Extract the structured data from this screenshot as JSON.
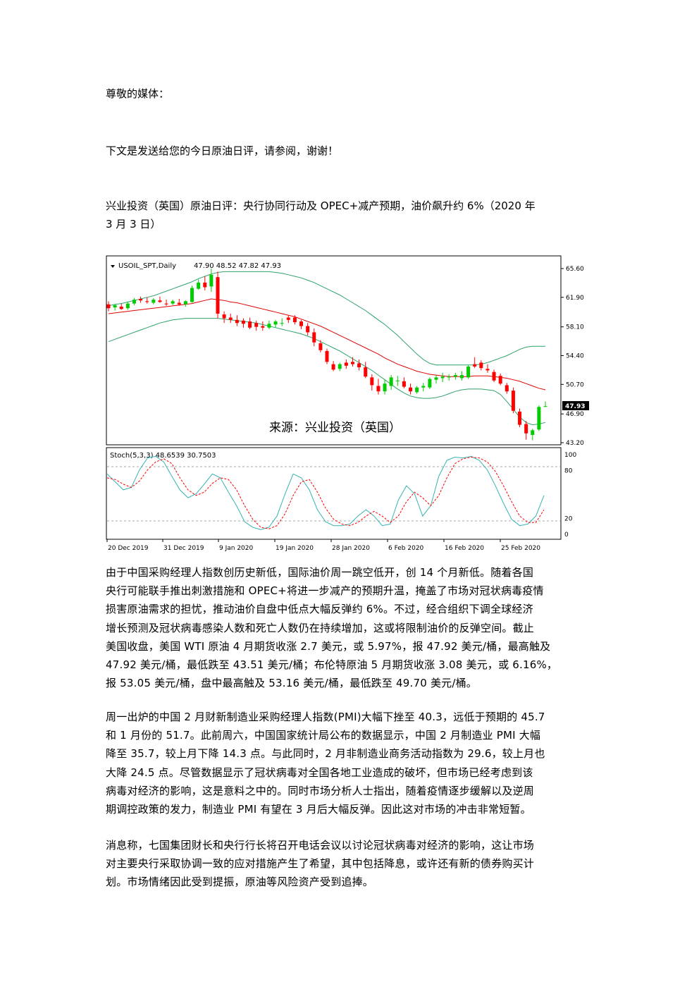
{
  "greeting": "尊敬的媒体：",
  "intro": "下文是发送给您的今日原油日评，请参阅，谢谢！",
  "headline": "兴业投资（英国）原油日评：央行协同行动及 OPEC+减产预期，油价飙升约 6%（2020 年 3 月 3 日）",
  "chart_data": [
    {
      "type": "candlestick",
      "title": "USOIL_SPT,Daily",
      "ohlc_label": "47.90 48.52 47.82 47.93",
      "current_price": "47.93",
      "watermark": "来源：兴业投资（英国）",
      "y_ticks": [
        "65.60",
        "61.90",
        "58.10",
        "54.40",
        "50.70",
        "46.90",
        "43.20"
      ],
      "ylim": [
        43.2,
        65.6
      ],
      "candles": [
        {
          "o": 61.0,
          "h": 61.4,
          "l": 60.1,
          "c": 60.5,
          "up": false
        },
        {
          "o": 60.6,
          "h": 61.0,
          "l": 60.2,
          "c": 60.9,
          "up": true
        },
        {
          "o": 60.7,
          "h": 61.1,
          "l": 60.3,
          "c": 60.4,
          "up": false
        },
        {
          "o": 60.5,
          "h": 61.3,
          "l": 60.3,
          "c": 61.1,
          "up": true
        },
        {
          "o": 61.1,
          "h": 61.8,
          "l": 60.9,
          "c": 61.6,
          "up": true
        },
        {
          "o": 61.5,
          "h": 62.0,
          "l": 61.2,
          "c": 61.7,
          "up": false
        },
        {
          "o": 61.4,
          "h": 61.9,
          "l": 61.1,
          "c": 61.3,
          "up": false
        },
        {
          "o": 61.2,
          "h": 61.8,
          "l": 61.0,
          "c": 61.6,
          "up": true
        },
        {
          "o": 61.5,
          "h": 62.0,
          "l": 61.2,
          "c": 61.3,
          "up": false
        },
        {
          "o": 61.1,
          "h": 61.6,
          "l": 60.8,
          "c": 61.0,
          "up": false
        },
        {
          "o": 61.1,
          "h": 61.6,
          "l": 60.9,
          "c": 61.4,
          "up": true
        },
        {
          "o": 61.2,
          "h": 61.7,
          "l": 60.8,
          "c": 61.0,
          "up": false
        },
        {
          "o": 61.0,
          "h": 61.5,
          "l": 60.7,
          "c": 61.4,
          "up": true
        },
        {
          "o": 61.3,
          "h": 63.4,
          "l": 61.2,
          "c": 63.1,
          "up": true
        },
        {
          "o": 63.0,
          "h": 64.2,
          "l": 62.9,
          "c": 63.8,
          "up": true
        },
        {
          "o": 63.8,
          "h": 64.6,
          "l": 62.8,
          "c": 63.2,
          "up": false
        },
        {
          "o": 63.3,
          "h": 65.6,
          "l": 62.6,
          "c": 64.8,
          "up": true
        },
        {
          "o": 64.5,
          "h": 65.2,
          "l": 59.2,
          "c": 59.8,
          "up": false
        },
        {
          "o": 59.7,
          "h": 60.1,
          "l": 58.6,
          "c": 59.2,
          "up": false
        },
        {
          "o": 59.3,
          "h": 59.8,
          "l": 58.6,
          "c": 59.0,
          "up": false
        },
        {
          "o": 59.0,
          "h": 59.6,
          "l": 58.2,
          "c": 58.6,
          "up": false
        },
        {
          "o": 58.5,
          "h": 59.2,
          "l": 58.0,
          "c": 58.9,
          "up": false
        },
        {
          "o": 58.8,
          "h": 59.3,
          "l": 57.8,
          "c": 58.0,
          "up": false
        },
        {
          "o": 58.1,
          "h": 58.9,
          "l": 57.6,
          "c": 58.6,
          "up": false
        },
        {
          "o": 58.2,
          "h": 58.8,
          "l": 57.6,
          "c": 58.0,
          "up": false
        },
        {
          "o": 58.0,
          "h": 58.9,
          "l": 57.8,
          "c": 58.5,
          "up": true
        },
        {
          "o": 58.4,
          "h": 59.0,
          "l": 58.0,
          "c": 58.8,
          "up": true
        },
        {
          "o": 58.6,
          "h": 59.2,
          "l": 58.2,
          "c": 58.6,
          "up": true
        },
        {
          "o": 59.0,
          "h": 59.6,
          "l": 58.6,
          "c": 59.3,
          "up": false
        },
        {
          "o": 59.3,
          "h": 59.6,
          "l": 58.4,
          "c": 58.7,
          "up": false
        },
        {
          "o": 58.8,
          "h": 59.0,
          "l": 57.8,
          "c": 58.2,
          "up": false
        },
        {
          "o": 58.2,
          "h": 58.6,
          "l": 57.0,
          "c": 57.4,
          "up": false
        },
        {
          "o": 57.4,
          "h": 57.9,
          "l": 55.6,
          "c": 56.1,
          "up": false
        },
        {
          "o": 56.0,
          "h": 56.4,
          "l": 54.8,
          "c": 55.1,
          "up": false
        },
        {
          "o": 55.0,
          "h": 55.3,
          "l": 53.3,
          "c": 53.6,
          "up": false
        },
        {
          "o": 53.3,
          "h": 53.7,
          "l": 52.4,
          "c": 52.6,
          "up": false
        },
        {
          "o": 52.7,
          "h": 53.5,
          "l": 52.4,
          "c": 53.3,
          "up": true
        },
        {
          "o": 53.1,
          "h": 53.9,
          "l": 52.7,
          "c": 53.5,
          "up": false
        },
        {
          "o": 53.6,
          "h": 54.2,
          "l": 53.0,
          "c": 53.3,
          "up": false
        },
        {
          "o": 53.4,
          "h": 53.9,
          "l": 52.5,
          "c": 52.9,
          "up": false
        },
        {
          "o": 52.9,
          "h": 53.6,
          "l": 51.5,
          "c": 51.7,
          "up": false
        },
        {
          "o": 51.6,
          "h": 52.0,
          "l": 49.9,
          "c": 50.6,
          "up": false
        },
        {
          "o": 50.5,
          "h": 51.4,
          "l": 49.4,
          "c": 49.8,
          "up": false
        },
        {
          "o": 49.8,
          "h": 51.3,
          "l": 49.4,
          "c": 50.8,
          "up": true
        },
        {
          "o": 50.5,
          "h": 51.9,
          "l": 50.0,
          "c": 51.6,
          "up": true
        },
        {
          "o": 51.2,
          "h": 51.8,
          "l": 50.5,
          "c": 51.1,
          "up": true
        },
        {
          "o": 51.1,
          "h": 51.6,
          "l": 50.2,
          "c": 50.4,
          "up": false
        },
        {
          "o": 50.3,
          "h": 50.8,
          "l": 49.4,
          "c": 49.8,
          "up": false
        },
        {
          "o": 49.7,
          "h": 50.5,
          "l": 49.5,
          "c": 50.3,
          "up": true
        },
        {
          "o": 50.3,
          "h": 50.9,
          "l": 49.8,
          "c": 50.5,
          "up": true
        },
        {
          "o": 50.3,
          "h": 51.6,
          "l": 50.1,
          "c": 51.4,
          "up": true
        },
        {
          "o": 51.3,
          "h": 51.9,
          "l": 50.8,
          "c": 51.6,
          "up": true
        },
        {
          "o": 51.5,
          "h": 52.2,
          "l": 51.0,
          "c": 51.7,
          "up": true
        },
        {
          "o": 51.6,
          "h": 52.0,
          "l": 51.2,
          "c": 51.7,
          "up": true
        },
        {
          "o": 51.7,
          "h": 52.2,
          "l": 51.3,
          "c": 51.9,
          "up": true
        },
        {
          "o": 51.9,
          "h": 52.4,
          "l": 51.2,
          "c": 51.5,
          "up": true
        },
        {
          "o": 51.6,
          "h": 53.2,
          "l": 51.4,
          "c": 53.0,
          "up": true
        },
        {
          "o": 53.0,
          "h": 54.2,
          "l": 52.8,
          "c": 53.3,
          "up": false
        },
        {
          "o": 53.5,
          "h": 53.8,
          "l": 52.5,
          "c": 52.8,
          "up": false
        },
        {
          "o": 52.7,
          "h": 53.3,
          "l": 52.2,
          "c": 52.5,
          "up": false
        },
        {
          "o": 52.3,
          "h": 52.6,
          "l": 51.0,
          "c": 51.2,
          "up": false
        },
        {
          "o": 51.8,
          "h": 52.1,
          "l": 50.6,
          "c": 50.8,
          "up": false
        },
        {
          "o": 50.6,
          "h": 50.9,
          "l": 49.5,
          "c": 49.8,
          "up": false
        },
        {
          "o": 49.9,
          "h": 50.3,
          "l": 47.0,
          "c": 47.3,
          "up": false
        },
        {
          "o": 47.2,
          "h": 47.6,
          "l": 45.2,
          "c": 45.5,
          "up": false
        },
        {
          "o": 45.6,
          "h": 46.0,
          "l": 43.6,
          "c": 44.4,
          "up": false
        },
        {
          "o": 44.2,
          "h": 45.0,
          "l": 43.5,
          "c": 44.8,
          "up": true
        },
        {
          "o": 44.9,
          "h": 48.0,
          "l": 44.7,
          "c": 47.8,
          "up": true
        },
        {
          "o": 47.9,
          "h": 48.5,
          "l": 47.8,
          "c": 47.9,
          "up": true
        }
      ],
      "middle_band": [
        59.8,
        59.9,
        60.0,
        60.1,
        60.2,
        60.3,
        60.4,
        60.5,
        60.6,
        60.7,
        60.8,
        60.9,
        61.0,
        61.1,
        61.3,
        61.5,
        61.7,
        61.6,
        61.5,
        61.3,
        61.2,
        61.0,
        60.8,
        60.6,
        60.4,
        60.2,
        60.0,
        59.8,
        59.6,
        59.4,
        59.1,
        58.8,
        58.5,
        58.2,
        57.8,
        57.4,
        57.0,
        56.6,
        56.2,
        55.8,
        55.4,
        55.0,
        54.6,
        54.1,
        53.7,
        53.3,
        53.0,
        52.7,
        52.4,
        52.2,
        52.0,
        51.9,
        51.8,
        51.7,
        51.7,
        51.7,
        51.7,
        51.8,
        51.8,
        51.8,
        51.7,
        51.6,
        51.5,
        51.3,
        51.1,
        50.8,
        50.5,
        50.2,
        50.0
      ],
      "upper_band": [
        60.8,
        61.0,
        61.1,
        61.3,
        61.5,
        61.7,
        61.9,
        62.1,
        62.4,
        62.7,
        63.0,
        63.3,
        63.6,
        63.9,
        64.3,
        64.6,
        64.9,
        65.1,
        65.2,
        65.2,
        65.2,
        65.2,
        65.2,
        65.2,
        65.2,
        65.2,
        65.1,
        65.0,
        64.8,
        64.6,
        64.4,
        64.1,
        63.8,
        63.4,
        63.0,
        62.6,
        62.2,
        61.7,
        61.2,
        60.7,
        60.2,
        59.6,
        59.0,
        58.4,
        57.7,
        57.0,
        56.2,
        55.4,
        54.6,
        53.9,
        53.4,
        53.2,
        53.2,
        53.2,
        53.2,
        53.2,
        53.2,
        53.2,
        53.3,
        53.5,
        53.8,
        54.1,
        54.4,
        54.8,
        55.2,
        55.5,
        55.6,
        55.6,
        55.6
      ],
      "lower_band": [
        56.2,
        56.5,
        56.8,
        57.1,
        57.4,
        57.7,
        58.0,
        58.3,
        58.6,
        58.8,
        59.0,
        59.1,
        59.2,
        59.2,
        59.2,
        59.2,
        59.2,
        59.2,
        59.1,
        59.0,
        58.9,
        58.8,
        58.7,
        58.6,
        58.4,
        58.2,
        58.0,
        57.8,
        57.6,
        57.4,
        57.2,
        56.9,
        56.6,
        56.2,
        55.8,
        55.4,
        55.0,
        54.5,
        54.0,
        53.5,
        53.0,
        52.5,
        51.9,
        51.3,
        50.7,
        50.1,
        49.6,
        49.2,
        49.0,
        48.9,
        48.9,
        49.0,
        49.2,
        49.5,
        49.8,
        50.0,
        50.1,
        50.1,
        50.1,
        50.0,
        49.9,
        49.4,
        48.5,
        47.5,
        46.5,
        45.8,
        45.5,
        45.6,
        45.8
      ]
    },
    {
      "type": "line",
      "title": "Stoch(5,3,3) 48.6539 30.7503",
      "y_ticks": [
        "100",
        "80",
        "20",
        "0"
      ],
      "ylim": [
        0,
        100
      ],
      "x_tick_labels": [
        "20 Dec 2019",
        "31 Dec 2019",
        "9 Jan 2020",
        "19 Jan 2020",
        "28 Jan 2020",
        "6 Feb 2020",
        "16 Feb 2020",
        "25 Feb 2020"
      ],
      "series": [
        {
          "values": [
            75,
            65,
            55,
            58,
            80,
            95,
            97,
            90,
            72,
            55,
            45,
            50,
            62,
            75,
            70,
            52,
            35,
            15,
            8,
            5,
            8,
            22,
            50,
            75,
            70,
            55,
            30,
            15,
            10,
            10,
            12,
            22,
            30,
            22,
            10,
            12,
            42,
            60,
            50,
            22,
            35,
            72,
            92,
            96,
            95,
            97,
            92,
            80,
            60,
            38,
            18,
            10,
            12,
            22,
            48
          ]
        },
        {
          "values": [
            70,
            68,
            62,
            58,
            66,
            80,
            90,
            94,
            88,
            70,
            55,
            48,
            52,
            63,
            70,
            68,
            55,
            35,
            18,
            8,
            6,
            10,
            25,
            48,
            65,
            68,
            52,
            32,
            18,
            12,
            10,
            14,
            22,
            28,
            22,
            14,
            22,
            40,
            52,
            45,
            35,
            48,
            70,
            88,
            94,
            96,
            95,
            90,
            78,
            60,
            40,
            22,
            14,
            14,
            30
          ]
        }
      ]
    }
  ],
  "paragraphs": [
    [
      "由于中国采购经理人指数创历史新低，国际油价周一跳空低开，创 14 个月新低。随着各国",
      "央行可能联手推出刺激措施和 OPEC+将进一步减产的预期升温，掩盖了市场对冠状病毒疫情",
      "损害原油需求的担忧，推动油价自盘中低点大幅反弹约 6%。不过，经合组织下调全球经济",
      "增长预测及冠状病毒感染人数和死亡人数仍在持续增加，这或将限制油价的反弹空间。截止",
      "美国收盘，美国 WTI 原油 4 月期货收涨 2.7 美元，或 5.97%，报 47.92 美元/桶，最高触及",
      "47.92 美元/桶，最低跌至 43.51 美元/桶；布伦特原油 5 月期货收涨 3.08 美元，或 6.16%，",
      "报 53.05 美元/桶，盘中最高触及 53.16 美元/桶，最低跌至 49.70 美元/桶。"
    ],
    [
      "周一出炉的中国 2 月财新制造业采购经理人指数(PMI)大幅下挫至 40.3，远低于预期的 45.7",
      "和 1 月份的 51.7。此前周六，中国国家统计局公布的数据显示，中国 2 月制造业 PMI 大幅",
      "降至 35.7，较上月下降 14.3 点。与此同时，2 月非制造业商务活动指数为 29.6，较上月也",
      "大降 24.5 点。尽管数据显示了冠状病毒对全国各地工业造成的破坏，但市场已经考虑到该",
      "病毒对经济的影响，这是意料之中的。同时市场分析人士指出，随着疫情逐步缓解以及逆周",
      "期调控政策的发力，制造业 PMI 有望在 3 月后大幅反弹。因此这对市场的冲击非常短暂。"
    ],
    [
      "消息称，七国集团财长和央行行长将召开电话会议以讨论冠状病毒对经济的影响，这让市场",
      "对主要央行采取协调一致的应对措施产生了希望，其中包括降息，或许还有新的债券购买计",
      "划。市场情绪因此受到提振，原油等风险资产受到追捧。"
    ]
  ],
  "colors": {
    "up": "#00cc00",
    "down": "#ff0000",
    "bands": "#2ea36a",
    "middle": "#e00000",
    "stoch_main": "#36b3b3",
    "stoch_signal": "#ff0000"
  }
}
